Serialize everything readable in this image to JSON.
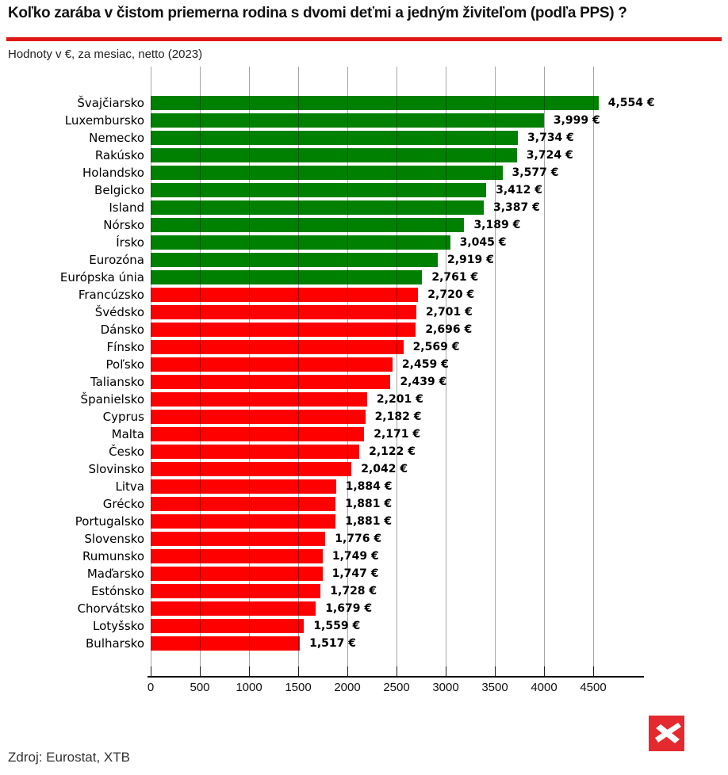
{
  "header": {
    "title": "Koľko zarába v čistom priemerna rodina s dvomi deťmi a jedným živiteľom (podľa PPS) ?",
    "subtitle": "Hodnoty v €, za mesiac, netto (2023)"
  },
  "footer": {
    "source": "Zdroj: Eurostat, XTB",
    "logo_icon": "xtb-logo"
  },
  "colors": {
    "bar_green": "#008000",
    "bar_red": "#fe0000",
    "divider_red": "#e01717",
    "logo_red": "#e42a2e",
    "grid": "rgba(0,0,0,0.35)",
    "axis": "#000000"
  },
  "chart_data": {
    "type": "bar",
    "orientation": "horizontal",
    "title": "Koľko zarába v čistom priemerna rodina s dvomi deťmi a jedným živiteľom (podľa PPS) ?",
    "subtitle": "Hodnoty v €, za mesiac, netto (2023)",
    "xlabel": "",
    "ylabel": "",
    "xlim": [
      0,
      5016
    ],
    "xticks": [
      0,
      500,
      1000,
      1500,
      2000,
      2500,
      3000,
      3500,
      4000,
      4500
    ],
    "grid": true,
    "legend": false,
    "categories": [
      "Švajčiarsko",
      "Luxembursko",
      "Nemecko",
      "Rakúsko",
      "Holandsko",
      "Belgicko",
      "Island",
      "Nórsko",
      "Írsko",
      "Eurozóna",
      "Európska únia",
      "Francúzsko",
      "Švédsko",
      "Dánsko",
      "Fínsko",
      "Poľsko",
      "Taliansko",
      "Španielsko",
      "Cyprus",
      "Malta",
      "Česko",
      "Slovinsko",
      "Litva",
      "Grécko",
      "Portugalsko",
      "Slovensko",
      "Rumunsko",
      "Maďarsko",
      "Estónsko",
      "Chorvátsko",
      "Lotyšsko",
      "Bulharsko"
    ],
    "values": [
      4554,
      3999,
      3734,
      3724,
      3577,
      3412,
      3387,
      3189,
      3045,
      2919,
      2761,
      2720,
      2701,
      2696,
      2569,
      2459,
      2439,
      2201,
      2182,
      2171,
      2122,
      2042,
      1884,
      1881,
      1881,
      1776,
      1749,
      1747,
      1728,
      1679,
      1559,
      1517
    ],
    "value_labels": [
      "4,554 €",
      "3,999 €",
      "3,734 €",
      "3,724 €",
      "3,577 €",
      "3,412 €",
      "3,387 €",
      "3,189 €",
      "3,045 €",
      "2,919 €",
      "2,761 €",
      "2,720 €",
      "2,701 €",
      "2,696 €",
      "2,569 €",
      "2,459 €",
      "2,439 €",
      "2,201 €",
      "2,182 €",
      "2,171 €",
      "2,122 €",
      "2,042 €",
      "1,884 €",
      "1,881 €",
      "1,881 €",
      "1,776 €",
      "1,749 €",
      "1,747 €",
      "1,728 €",
      "1,679 €",
      "1,559 €",
      "1,517 €"
    ],
    "bar_colors": [
      "green",
      "green",
      "green",
      "green",
      "green",
      "green",
      "green",
      "green",
      "green",
      "green",
      "green",
      "red",
      "red",
      "red",
      "red",
      "red",
      "red",
      "red",
      "red",
      "red",
      "red",
      "red",
      "red",
      "red",
      "red",
      "red",
      "red",
      "red",
      "red",
      "red",
      "red",
      "red"
    ]
  }
}
